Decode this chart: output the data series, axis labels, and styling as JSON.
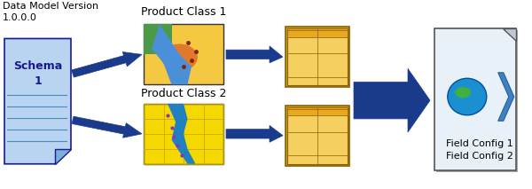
{
  "background_color": "#ffffff",
  "schema_label_top": "Data Model Version\n1.0.0.0",
  "schema_label_center": "Schema\n1",
  "schema_face_color": "#b8d4f0",
  "schema_line_color": "#1a1a8c",
  "product_class1_label": "Product Class 1",
  "product_class2_label": "Product Class 2",
  "field_config1_label": "Field\nConfig 1",
  "field_config2_label": "Field\nConfig 2",
  "final_label": "Field Config 1\nField Config 2",
  "arrow_color": "#1a3a8c",
  "font_color": "#000000",
  "title_font_size": 9,
  "label_font_size": 9,
  "small_font_size": 8
}
